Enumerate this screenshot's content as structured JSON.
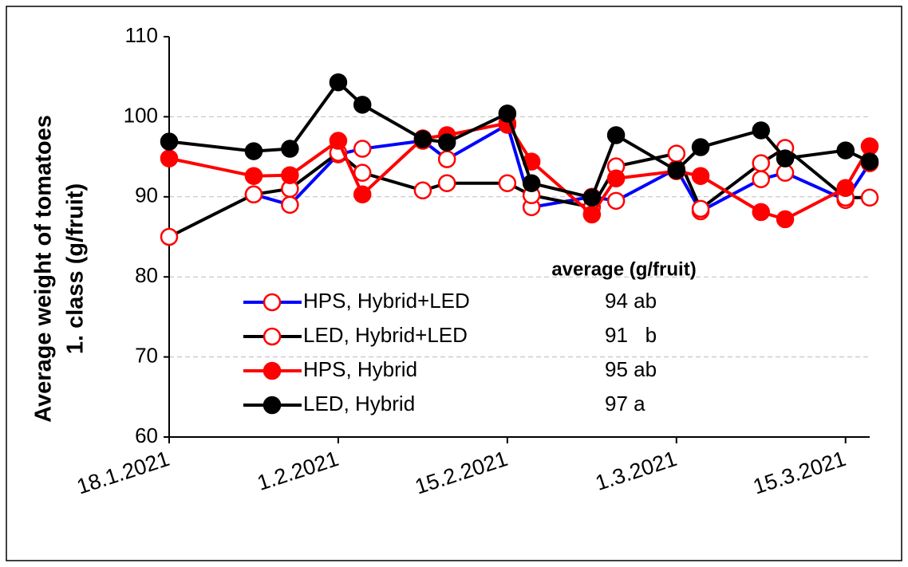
{
  "chart_data": {
    "type": "line",
    "y_label_lines": [
      "Average weight of tomatoes",
      "1. class (g/fruit)"
    ],
    "x": [
      "2021-01-18",
      "2021-01-25",
      "2021-01-28",
      "2021-02-01",
      "2021-02-03",
      "2021-02-08",
      "2021-02-10",
      "2021-02-15",
      "2021-02-17",
      "2021-02-22",
      "2021-02-24",
      "2021-03-01",
      "2021-03-03",
      "2021-03-08",
      "2021-03-10",
      "2021-03-15",
      "2021-03-17"
    ],
    "xlim": [
      "2021-01-18",
      "2021-03-17"
    ],
    "xticks": [
      {
        "value": "2021-01-18",
        "label": "18.1.2021"
      },
      {
        "value": "2021-02-01",
        "label": "1.2.2021"
      },
      {
        "value": "2021-02-15",
        "label": "15.2.2021"
      },
      {
        "value": "2021-03-01",
        "label": "1.3.2021"
      },
      {
        "value": "2021-03-15",
        "label": "15.3.2021"
      }
    ],
    "ylim": [
      60,
      110
    ],
    "yticks": [
      60,
      70,
      80,
      90,
      100,
      110
    ],
    "grid": true,
    "annotation_title": "average (g/fruit)",
    "series": [
      {
        "name": "HPS, Hybrid+LED",
        "color": "#0000ff",
        "marker_color": "#ff0000",
        "marker": "open",
        "average_label": "94 ab",
        "values": [
          null,
          90.3,
          89,
          95.3,
          96,
          97,
          94.7,
          99,
          88.7,
          90,
          89.5,
          93.5,
          88.2,
          92.2,
          93,
          89.6,
          94.2
        ]
      },
      {
        "name": "LED, Hybrid+LED",
        "color": "#000000",
        "marker_color": "#ff0000",
        "marker": "open",
        "average_label": "91   b",
        "values": [
          85,
          90.3,
          91,
          95.5,
          93,
          90.8,
          91.7,
          91.7,
          90.2,
          88.7,
          93.8,
          95.4,
          88.5,
          94.2,
          96.1,
          89.9,
          89.9
        ]
      },
      {
        "name": "HPS, Hybrid",
        "color": "#ff0000",
        "marker_color": "#ff0000",
        "marker": "filled",
        "average_label": "95 ab",
        "values": [
          94.8,
          92.6,
          92.7,
          97,
          90.3,
          97.3,
          97.7,
          99.2,
          94.4,
          87.8,
          92.3,
          93.2,
          92.6,
          88.1,
          87.2,
          91.1,
          96.3
        ]
      },
      {
        "name": "LED, Hybrid",
        "color": "#000000",
        "marker_color": "#000000",
        "marker": "filled",
        "average_label": "97 a",
        "values": [
          96.9,
          95.7,
          96,
          104.3,
          101.5,
          97.2,
          96.8,
          100.4,
          91.7,
          89.9,
          97.7,
          93.3,
          96.2,
          98.3,
          94.8,
          95.8,
          94.4
        ]
      }
    ]
  }
}
